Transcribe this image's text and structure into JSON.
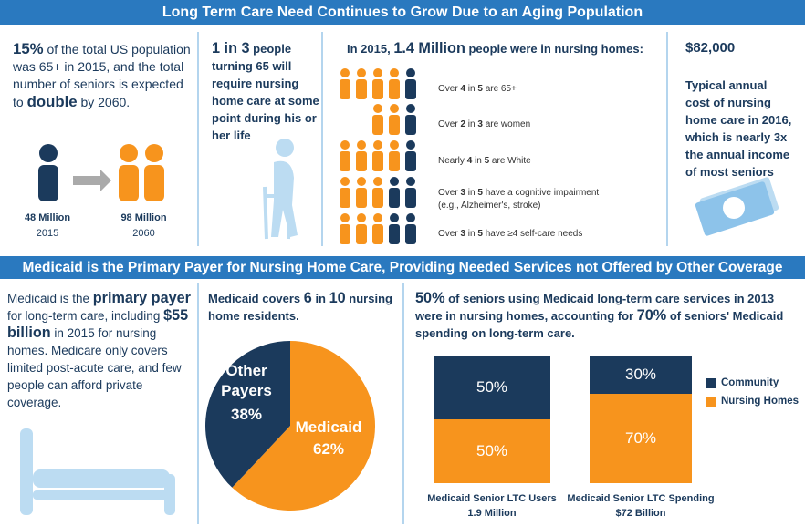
{
  "banner_top": "Long Term Care Need Continues to Grow Due to an Aging Population",
  "growth": {
    "parts": [
      {
        "text": "15%",
        "emphasis": true
      },
      {
        "text": " of the total US population was 65+ in 2015, and the total number of seniors is expected to ",
        "emphasis": false
      },
      {
        "text": "double",
        "emphasis": true
      },
      {
        "text": " by 2060.",
        "emphasis": false
      }
    ],
    "from": {
      "value": "48 Million",
      "year": "2015"
    },
    "to": {
      "value": "98 Million",
      "year": "2060"
    }
  },
  "risk": {
    "parts": [
      {
        "text": "1 in 3",
        "emphasis": true
      },
      {
        "text": " people turning 65 will require nursing home care at some point during his or her life",
        "emphasis": false
      }
    ]
  },
  "nursing": {
    "heading_parts": [
      {
        "text": "In 2015, ",
        "emphasis": false
      },
      {
        "text": "1.4 Million",
        "emphasis": true
      },
      {
        "text": " people were in nursing homes:",
        "emphasis": false
      }
    ],
    "rows": [
      {
        "parts": [
          {
            "text": "Over ",
            "emphasis": false
          },
          {
            "text": "4",
            "emphasis": true
          },
          {
            "text": " in ",
            "emphasis": false
          },
          {
            "text": "5",
            "emphasis": true
          },
          {
            "text": " are 65+",
            "emphasis": false
          }
        ],
        "highlighted": 4,
        "total": 5
      },
      {
        "parts": [
          {
            "text": "Over ",
            "emphasis": false
          },
          {
            "text": "2",
            "emphasis": true
          },
          {
            "text": " in ",
            "emphasis": false
          },
          {
            "text": "3",
            "emphasis": true
          },
          {
            "text": " are women",
            "emphasis": false
          }
        ],
        "highlighted": 2,
        "total": 3
      },
      {
        "parts": [
          {
            "text": "Nearly ",
            "emphasis": false
          },
          {
            "text": "4",
            "emphasis": true
          },
          {
            "text": " in ",
            "emphasis": false
          },
          {
            "text": "5",
            "emphasis": true
          },
          {
            "text": " are White",
            "emphasis": false
          }
        ],
        "highlighted": 4,
        "total": 5
      },
      {
        "parts": [
          {
            "text": "Over ",
            "emphasis": false
          },
          {
            "text": "3",
            "emphasis": true
          },
          {
            "text": " in ",
            "emphasis": false
          },
          {
            "text": "5",
            "emphasis": true
          },
          {
            "text": " have a cognitive impairment",
            "emphasis": false
          }
        ],
        "note": "(e.g., Alzheimer's, stroke)",
        "highlighted": 3,
        "total": 5
      },
      {
        "parts": [
          {
            "text": "Over ",
            "emphasis": false
          },
          {
            "text": "3",
            "emphasis": true
          },
          {
            "text": " in ",
            "emphasis": false
          },
          {
            "text": "5",
            "emphasis": true
          },
          {
            "text": " have ≥4 self-care needs",
            "emphasis": false
          }
        ],
        "highlighted": 3,
        "total": 5
      }
    ]
  },
  "cost": {
    "amount": "$82,000",
    "description": "Typical annual cost of nursing home care in 2016, which is nearly 3x the annual income of most seniors"
  },
  "banner_bottom": "Medicaid is the Primary Payer for Nursing Home Care, Providing Needed Services not Offered by Other Coverage",
  "primary": {
    "parts": [
      {
        "text": "Medicaid is the ",
        "emphasis": false
      },
      {
        "text": "primary payer",
        "emphasis": true
      },
      {
        "text": " for long-term care, including ",
        "emphasis": false
      },
      {
        "text": "$55 billion",
        "emphasis": true
      },
      {
        "text": " in 2015 for nursing homes. Medicare only covers limited post-acute care, and few people can afford private coverage.",
        "emphasis": false
      }
    ]
  },
  "coverage": {
    "parts": [
      {
        "text": "Medicaid covers ",
        "emphasis": false
      },
      {
        "text": "6",
        "emphasis": true
      },
      {
        "text": " in ",
        "emphasis": false
      },
      {
        "text": "10",
        "emphasis": true
      },
      {
        "text": " nursing home residents.",
        "emphasis": false
      }
    ],
    "pie": {
      "slices": [
        {
          "name": "Medicaid",
          "value": 62,
          "value_label": "62%",
          "color": "#f7941d"
        },
        {
          "name": "Other Payers",
          "value": 38,
          "value_label": "38%",
          "color": "#1b3a5c"
        }
      ]
    }
  },
  "spending": {
    "parts": [
      {
        "text": "50%",
        "emphasis": true
      },
      {
        "text": " of seniors using Medicaid long-term care services in 2013 were in nursing homes, accounting for ",
        "emphasis": false
      },
      {
        "text": "70%",
        "emphasis": true
      },
      {
        "text": " of seniors' Medicaid spending on long-term care.",
        "emphasis": false
      }
    ],
    "chart": {
      "categories": [
        "Medicaid Senior LTC Users",
        "Medicaid Senior LTC Spending"
      ],
      "category_notes": [
        "1.9 Million",
        "$72 Billion"
      ],
      "series": [
        {
          "name": "Community",
          "color": "#1b3a5c",
          "values": [
            50,
            30
          ],
          "value_labels": [
            "50%",
            "30%"
          ]
        },
        {
          "name": "Nursing Homes",
          "color": "#f7941d",
          "values": [
            50,
            70
          ],
          "value_labels": [
            "50%",
            "70%"
          ]
        }
      ]
    }
  }
}
